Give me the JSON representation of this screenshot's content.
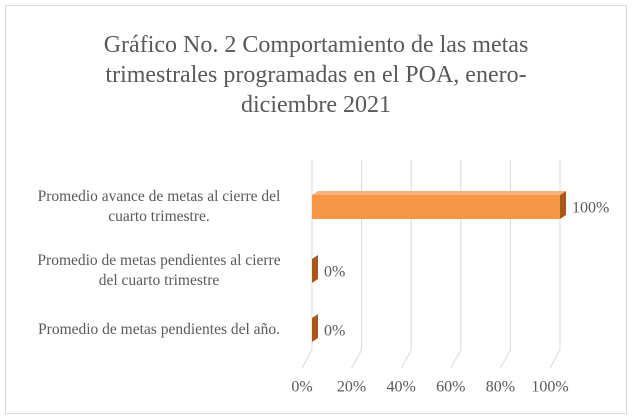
{
  "chart_data": {
    "type": "bar3d_horizontal",
    "title": "Gráfico No. 2 Comportamiento de las metas trimestrales programadas en el POA, enero-diciembre 2021",
    "categories": [
      "Promedio avance de metas al cierre del cuarto  trimestre.",
      "Promedio de metas pendientes al cierre del cuarto trimestre",
      "Promedio de metas pendientes del año."
    ],
    "values": [
      100,
      0,
      0
    ],
    "value_labels": [
      "100%",
      "0%",
      "0%"
    ],
    "color": "#f79646",
    "xlim": [
      0,
      100
    ],
    "xticks": [
      {
        "value": 0,
        "label": "0%"
      },
      {
        "value": 20,
        "label": "20%"
      },
      {
        "value": 40,
        "label": "40%"
      },
      {
        "value": 60,
        "label": "60%"
      },
      {
        "value": 80,
        "label": "80%"
      },
      {
        "value": 100,
        "label": "100%"
      }
    ],
    "grid": true
  }
}
